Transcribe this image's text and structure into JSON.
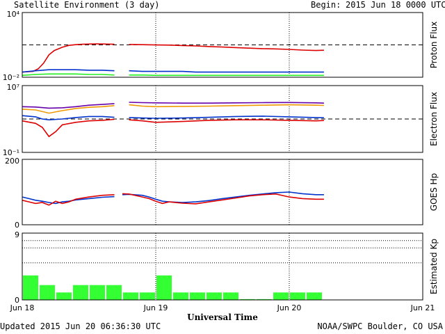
{
  "header": {
    "title": "Satellite Environment (3 day)",
    "begin_label": "Begin:",
    "begin_value": "2015 Jun 18 0000 UTC"
  },
  "footer": {
    "updated": "Updated 2015 Jun 20 06:36:30 UTC",
    "credit": "NOAA/SWPC Boulder, CO USA"
  },
  "chart_data": [
    {
      "type": "line",
      "name": "proton",
      "ylabel": "Proton Flux",
      "yscale": "log",
      "ylim": [
        0.01,
        10000
      ],
      "ytick_labels": [
        "10⁴",
        "10⁻²"
      ],
      "threshold": 10,
      "x_range_days": [
        0,
        3
      ],
      "series": [
        {
          "color": "#dd0000",
          "x": [
            0,
            0.08,
            0.12,
            0.16,
            0.2,
            0.24,
            0.3,
            0.35,
            0.4,
            0.45,
            0.5,
            0.55,
            0.6,
            0.65,
            0.69,
            0.7,
            0.8,
            0.9,
            1.0,
            1.1,
            1.2,
            1.3,
            1.4,
            1.5,
            1.6,
            1.7,
            1.8,
            1.9,
            2.0,
            2.1,
            2.2,
            2.26
          ],
          "y": [
            0.03,
            0.035,
            0.06,
            0.2,
            1.2,
            3.0,
            6.0,
            9.0,
            10.5,
            11.5,
            12.0,
            12.5,
            12.2,
            11.8,
            11.5,
            null,
            11.0,
            10.5,
            9.8,
            9.5,
            8.8,
            8.0,
            7.0,
            6.3,
            5.6,
            5.0,
            4.5,
            4.2,
            3.8,
            3.3,
            3.0,
            3.2
          ]
        },
        {
          "color": "#0033cc",
          "x": [
            0,
            0.1,
            0.2,
            0.3,
            0.4,
            0.5,
            0.6,
            0.69,
            0.7,
            0.8,
            0.9,
            1.0,
            1.1,
            1.2,
            1.3,
            1.4,
            1.5,
            1.6,
            1.7,
            1.8,
            1.9,
            2.0,
            2.1,
            2.2,
            2.26
          ],
          "y": [
            0.03,
            0.04,
            0.05,
            0.05,
            0.05,
            0.045,
            0.045,
            0.04,
            null,
            0.04,
            0.035,
            0.035,
            0.035,
            0.035,
            0.03,
            0.03,
            0.03,
            0.03,
            0.03,
            0.03,
            0.03,
            0.03,
            0.03,
            0.03,
            0.03
          ]
        },
        {
          "color": "#22ee22",
          "x": [
            0,
            0.1,
            0.2,
            0.3,
            0.4,
            0.5,
            0.6,
            0.69,
            0.7,
            0.8,
            0.9,
            1.0,
            1.1,
            1.2,
            1.3,
            1.4,
            1.5,
            1.6,
            1.7,
            1.8,
            1.9,
            2.0,
            2.1,
            2.2,
            2.26
          ],
          "y": [
            0.015,
            0.018,
            0.02,
            0.02,
            0.02,
            0.018,
            0.018,
            0.016,
            null,
            0.016,
            0.016,
            0.015,
            0.015,
            0.015,
            0.015,
            0.015,
            0.015,
            0.015,
            0.015,
            0.015,
            0.015,
            0.015,
            0.015,
            0.015,
            0.015
          ]
        }
      ]
    },
    {
      "type": "line",
      "name": "electron",
      "ylabel": "Electron Flux",
      "yscale": "log",
      "ylim": [
        0.1,
        10000000
      ],
      "ytick_labels": [
        "10⁷",
        "10⁻¹"
      ],
      "threshold": 1000,
      "x_range_days": [
        0,
        3
      ],
      "series": [
        {
          "color": "#6600aa",
          "x": [
            0,
            0.1,
            0.2,
            0.3,
            0.4,
            0.5,
            0.6,
            0.69,
            0.7,
            0.8,
            0.9,
            1.0,
            1.2,
            1.4,
            1.6,
            1.8,
            2.0,
            2.2,
            2.26
          ],
          "y": [
            30000,
            27000,
            20000,
            22000,
            30000,
            45000,
            55000,
            70000,
            null,
            100000,
            90000,
            85000,
            80000,
            80000,
            85000,
            90000,
            95000,
            85000,
            80000
          ]
        },
        {
          "color": "#ee9900",
          "x": [
            0,
            0.1,
            0.2,
            0.3,
            0.4,
            0.5,
            0.6,
            0.69,
            0.7,
            0.8,
            0.9,
            1.0,
            1.2,
            1.4,
            1.6,
            1.8,
            2.0,
            2.2,
            2.26
          ],
          "y": [
            15000,
            12000,
            5000,
            10000,
            18000,
            25000,
            30000,
            40000,
            null,
            50000,
            35000,
            30000,
            32000,
            35000,
            40000,
            45000,
            50000,
            45000,
            42000
          ]
        },
        {
          "color": "#0033cc",
          "x": [
            0,
            0.1,
            0.15,
            0.2,
            0.3,
            0.4,
            0.5,
            0.6,
            0.69,
            0.7,
            0.8,
            0.9,
            1.0,
            1.2,
            1.4,
            1.6,
            1.8,
            2.0,
            2.2,
            2.26
          ],
          "y": [
            2500,
            1800,
            1000,
            800,
            1000,
            1500,
            2000,
            2000,
            1600,
            null,
            1500,
            1300,
            1200,
            1300,
            1600,
            2000,
            2200,
            1800,
            1500,
            1400
          ]
        },
        {
          "color": "#dd0000",
          "x": [
            0,
            0.1,
            0.15,
            0.2,
            0.25,
            0.3,
            0.4,
            0.5,
            0.6,
            0.69,
            0.7,
            0.8,
            0.9,
            1.0,
            1.2,
            1.4,
            1.6,
            1.8,
            2.0,
            2.2,
            2.26
          ],
          "y": [
            600,
            300,
            100,
            8,
            30,
            200,
            400,
            600,
            700,
            900,
            null,
            800,
            600,
            400,
            500,
            700,
            800,
            800,
            700,
            600,
            650
          ]
        }
      ]
    },
    {
      "type": "line",
      "name": "hp",
      "ylabel": "GOES Hp",
      "yscale": "linear",
      "ylim": [
        0,
        200
      ],
      "ytick_labels": [
        "200",
        "0"
      ],
      "x_range_days": [
        0,
        3
      ],
      "series": [
        {
          "color": "#0033cc",
          "x": [
            0,
            0.05,
            0.1,
            0.15,
            0.2,
            0.25,
            0.3,
            0.35,
            0.4,
            0.5,
            0.6,
            0.69,
            0.7,
            0.75,
            0.8,
            0.9,
            0.95,
            1.0,
            1.05,
            1.1,
            1.2,
            1.3,
            1.4,
            1.5,
            1.6,
            1.7,
            1.8,
            1.9,
            2.0,
            2.1,
            2.2,
            2.26
          ],
          "y": [
            85,
            80,
            75,
            72,
            68,
            65,
            70,
            72,
            76,
            80,
            84,
            86,
            null,
            92,
            93,
            90,
            85,
            78,
            72,
            70,
            68,
            70,
            74,
            80,
            85,
            90,
            94,
            98,
            100,
            95,
            92,
            92
          ]
        },
        {
          "color": "#dd0000",
          "x": [
            0,
            0.05,
            0.1,
            0.15,
            0.2,
            0.25,
            0.3,
            0.35,
            0.4,
            0.5,
            0.6,
            0.69,
            0.7,
            0.75,
            0.8,
            0.9,
            0.95,
            1.0,
            1.05,
            1.1,
            1.2,
            1.3,
            1.4,
            1.5,
            1.6,
            1.7,
            1.8,
            1.9,
            2.0,
            2.1,
            2.2,
            2.26
          ],
          "y": [
            75,
            70,
            65,
            68,
            60,
            72,
            65,
            70,
            78,
            85,
            90,
            92,
            null,
            95,
            94,
            85,
            80,
            72,
            65,
            70,
            66,
            64,
            70,
            76,
            82,
            88,
            92,
            94,
            85,
            80,
            78,
            78
          ]
        }
      ]
    },
    {
      "type": "bar",
      "name": "kp",
      "ylabel": "Estimated Kp",
      "ylim": [
        0,
        9
      ],
      "ytick_labels": [
        "9",
        "0"
      ],
      "gridlines": [
        5,
        7,
        8
      ],
      "bar_hours": 3,
      "values": [
        3.3,
        2.0,
        1.0,
        2.0,
        2.0,
        2.0,
        1.0,
        1.0,
        3.3,
        1.0,
        1.0,
        1.0,
        1.0,
        0.1,
        0.1,
        1.0,
        1.0,
        1.0
      ],
      "bar_color": "#33ff33"
    }
  ],
  "x_axis": {
    "xlabel": "Universal Time",
    "tick_labels": [
      "Jun 18",
      "Jun 19",
      "Jun 20",
      "Jun 21"
    ],
    "day_markers": [
      1,
      2
    ]
  }
}
